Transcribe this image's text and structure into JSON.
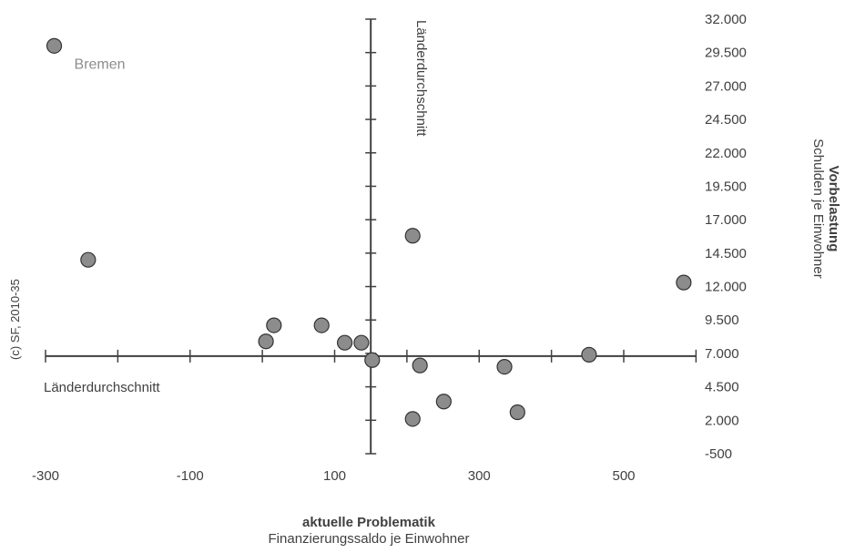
{
  "chart_data": {
    "type": "scatter",
    "x_axis": {
      "title": "aktuelle Problematik",
      "subtitle": "Finanzierungssaldo je Einwohner",
      "range": [
        -300,
        700
      ],
      "ticks": [
        -300,
        -100,
        100,
        300,
        500
      ],
      "tick_labels": [
        "-300",
        "-100",
        "100",
        "300",
        "500"
      ],
      "minor_ticks": [
        -200,
        0,
        200,
        400,
        600
      ],
      "reference_line_label": "Länderdurchschnitt"
    },
    "y_axis": {
      "title": "Vorbelastung",
      "subtitle": "Schulden je Einwohner",
      "range": [
        -500,
        32000
      ],
      "ticks": [
        -500,
        2000,
        4500,
        7000,
        9500,
        12000,
        14500,
        17000,
        19500,
        22000,
        24500,
        27000,
        29500,
        32000
      ],
      "tick_labels": [
        "-500",
        "2.000",
        "4.500",
        "7.000",
        "9.500",
        "12.000",
        "14.500",
        "17.000",
        "19.500",
        "22.000",
        "24.500",
        "27.000",
        "29.500",
        "32.000"
      ],
      "reference_line_label": "Länderdurchschnitt"
    },
    "reference": {
      "x": 150,
      "y": 6800
    },
    "point_color": "#8c8c8c",
    "points": [
      {
        "x": -288,
        "y": 30000,
        "label": "Bremen"
      },
      {
        "x": -241,
        "y": 14000
      },
      {
        "x": 5,
        "y": 7900
      },
      {
        "x": 16,
        "y": 9100
      },
      {
        "x": 82,
        "y": 9100
      },
      {
        "x": 114,
        "y": 7800
      },
      {
        "x": 137,
        "y": 7800
      },
      {
        "x": 152,
        "y": 6500
      },
      {
        "x": 208,
        "y": 15800
      },
      {
        "x": 218,
        "y": 6100
      },
      {
        "x": 208,
        "y": 2100
      },
      {
        "x": 251,
        "y": 3400
      },
      {
        "x": 335,
        "y": 6000
      },
      {
        "x": 353,
        "y": 2600
      },
      {
        "x": 452,
        "y": 6900
      },
      {
        "x": 583,
        "y": 12300
      }
    ],
    "credit": "(c) SF, 2010-35"
  }
}
